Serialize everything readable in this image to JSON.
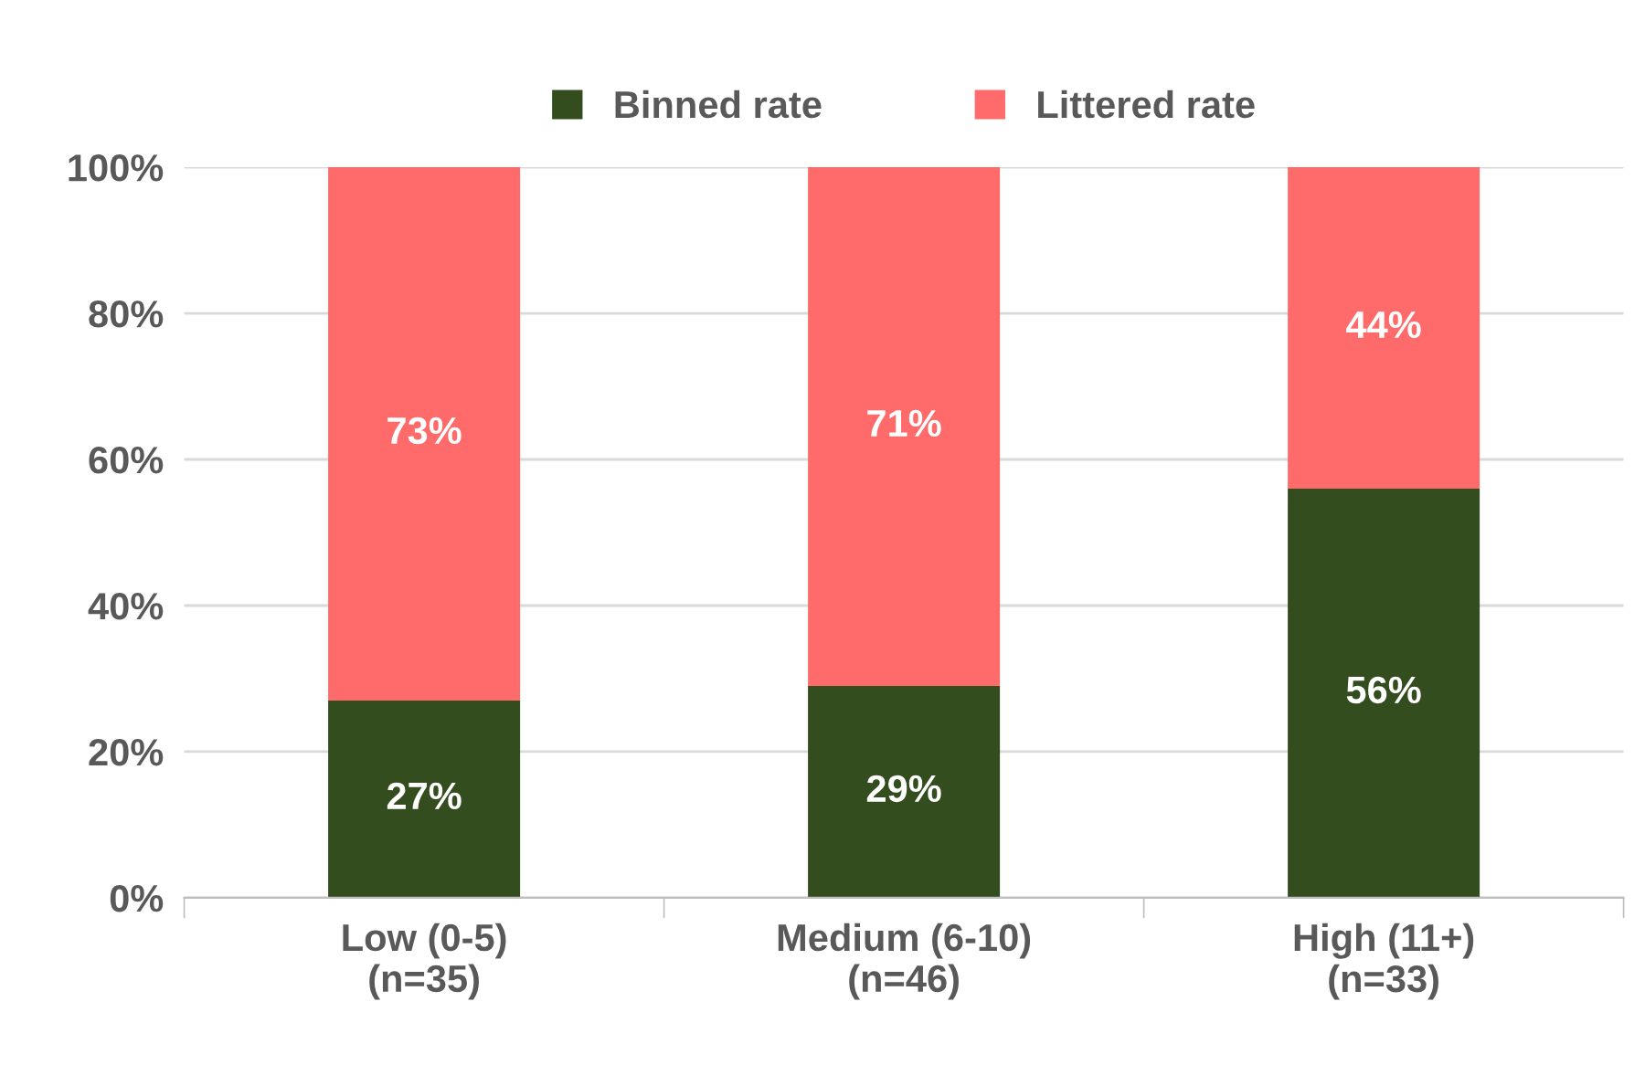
{
  "chart_data": {
    "type": "bar",
    "stacked": true,
    "categories": [
      "Low (0-5)\n(n=35)",
      "Medium (6-10)\n(n=46)",
      "High (11+)\n(n=33)"
    ],
    "series": [
      {
        "name": "Binned rate",
        "color": "#344d1f",
        "values": [
          27,
          29,
          56
        ],
        "value_labels": [
          "27%",
          "29%",
          "56%"
        ]
      },
      {
        "name": "Littered rate",
        "color": "#ff6b6b",
        "values": [
          73,
          71,
          44
        ],
        "value_labels": [
          "73%",
          "71%",
          "44%"
        ]
      }
    ],
    "ylim": [
      0,
      100
    ],
    "yticks": [
      {
        "value": 0,
        "label": "0%"
      },
      {
        "value": 20,
        "label": "20%"
      },
      {
        "value": 40,
        "label": "40%"
      },
      {
        "value": 60,
        "label": "60%"
      },
      {
        "value": 80,
        "label": "80%"
      },
      {
        "value": 100,
        "label": "100%"
      }
    ],
    "grid": "y",
    "legend": "top"
  }
}
